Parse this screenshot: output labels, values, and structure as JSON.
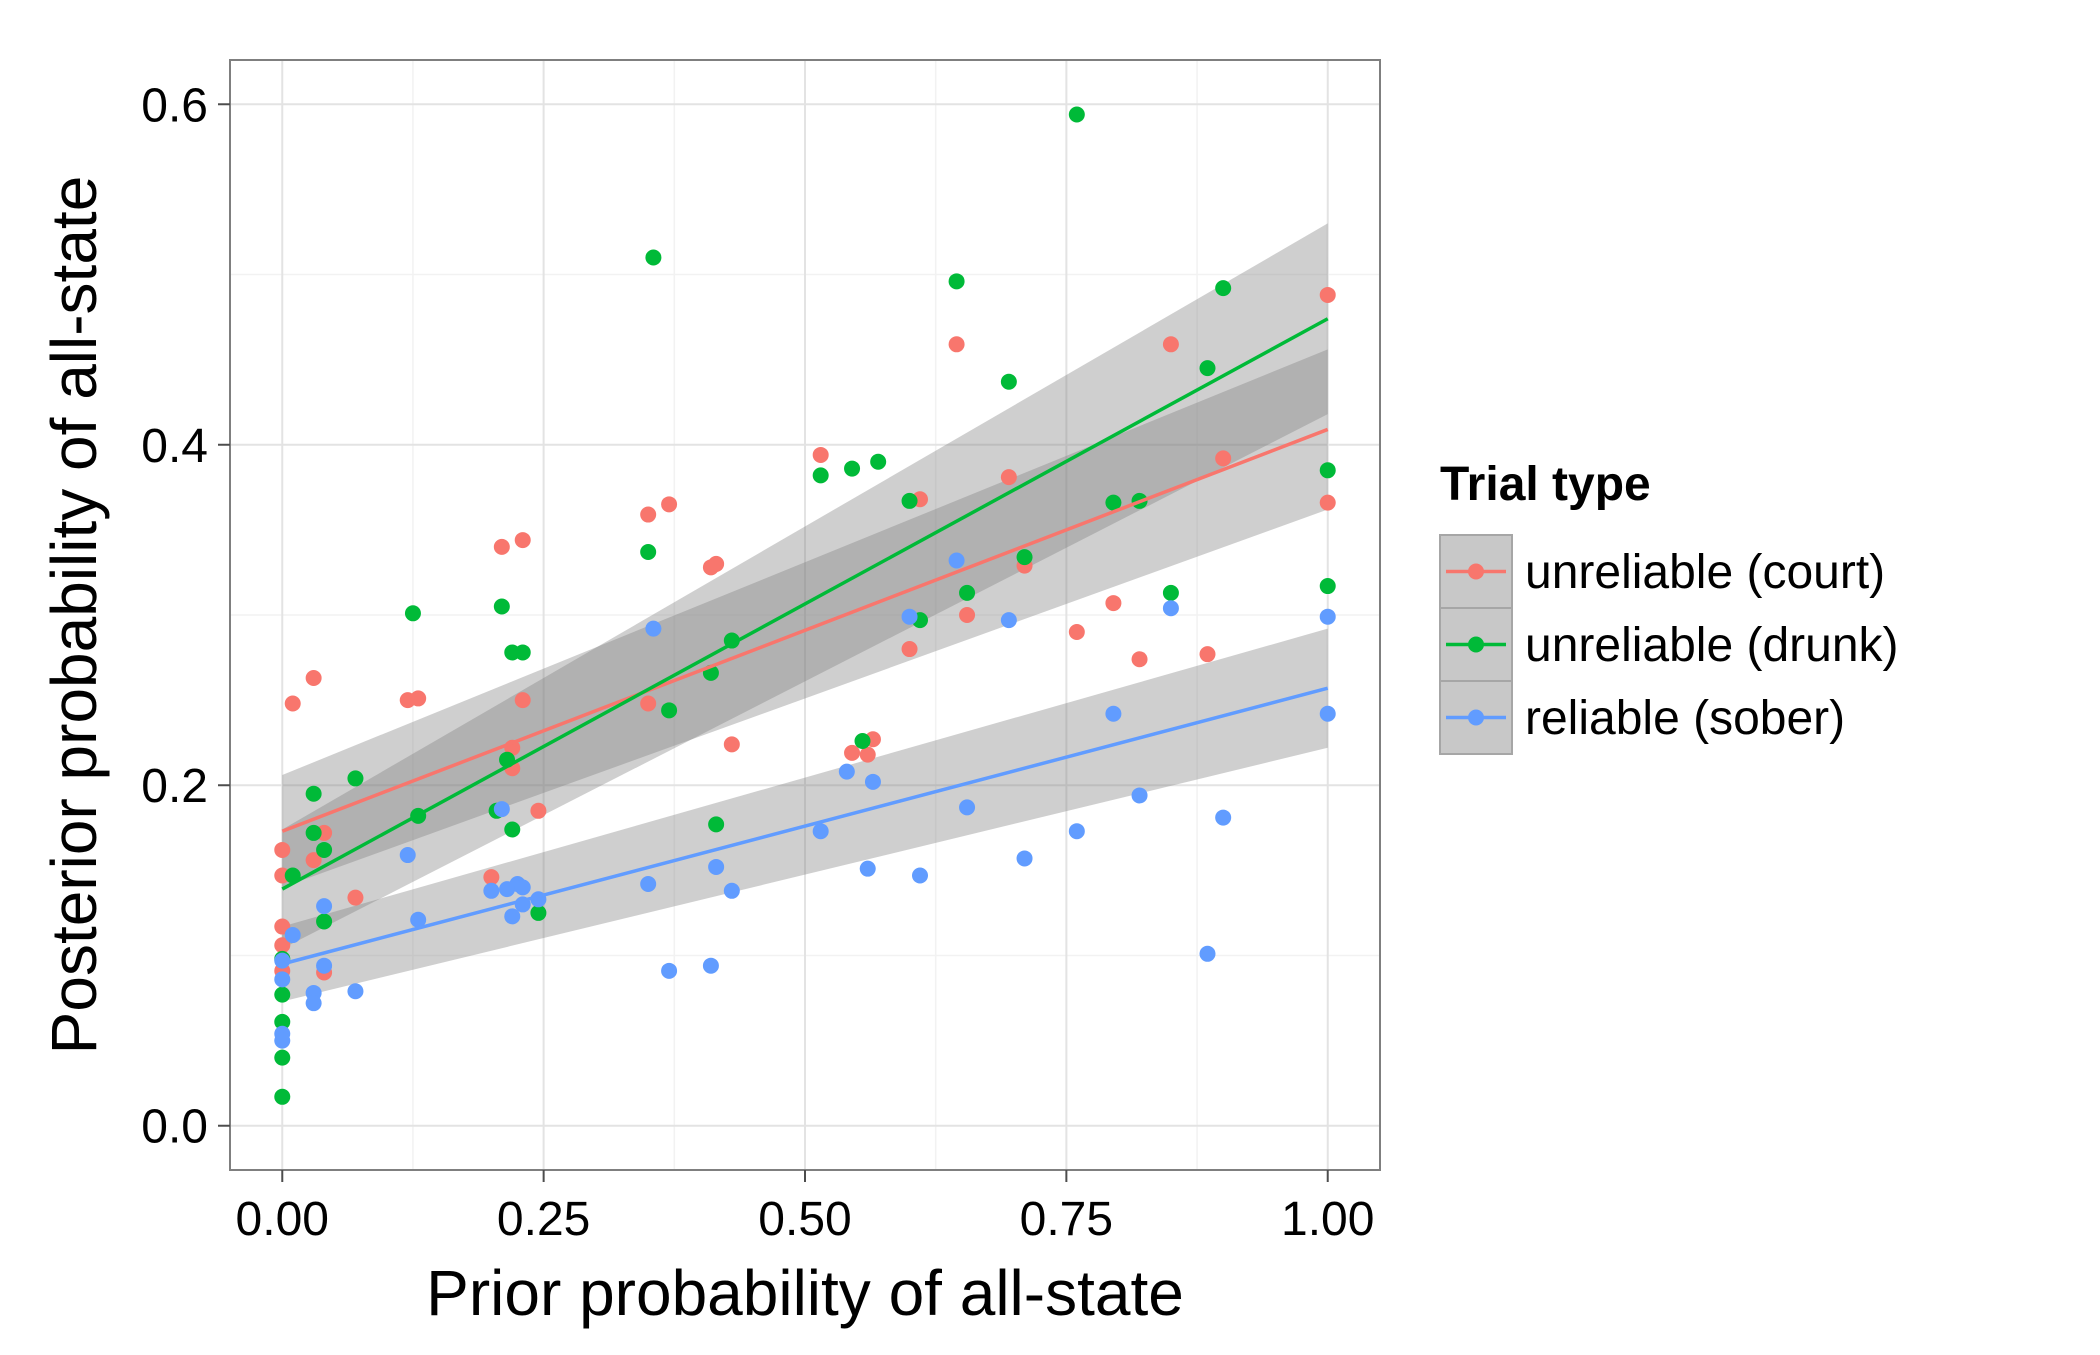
{
  "chart_data": {
    "type": "scatter",
    "xlabel": "Prior probability of all-state",
    "ylabel": "Posterior probability of all-state",
    "xlim": [
      -0.05,
      1.05
    ],
    "ylim": [
      -0.026,
      0.626
    ],
    "x_ticks": [
      0,
      0.25,
      0.5,
      0.75,
      1
    ],
    "x_tick_labels": [
      "0.00",
      "0.25",
      "0.50",
      "0.75",
      "1.00"
    ],
    "y_ticks": [
      0,
      0.2,
      0.4,
      0.6
    ],
    "y_tick_labels": [
      "0.0",
      "0.2",
      "0.4",
      "0.6"
    ],
    "grid": true,
    "legend": {
      "title": "Trial type",
      "position": "right"
    },
    "series": [
      {
        "name": "unreliable (court)",
        "color": "#F8766D",
        "points": [
          [
            0,
            0.162
          ],
          [
            0,
            0.147
          ],
          [
            0,
            0.117
          ],
          [
            0,
            0.106
          ],
          [
            0,
            0.091
          ],
          [
            0.01,
            0.248
          ],
          [
            0.03,
            0.263
          ],
          [
            0.03,
            0.156
          ],
          [
            0.04,
            0.172
          ],
          [
            0.04,
            0.09
          ],
          [
            0.07,
            0.134
          ],
          [
            0.12,
            0.25
          ],
          [
            0.13,
            0.251
          ],
          [
            0.2,
            0.146
          ],
          [
            0.21,
            0.34
          ],
          [
            0.22,
            0.222
          ],
          [
            0.22,
            0.21
          ],
          [
            0.23,
            0.344
          ],
          [
            0.23,
            0.25
          ],
          [
            0.245,
            0.185
          ],
          [
            0.35,
            0.359
          ],
          [
            0.35,
            0.248
          ],
          [
            0.37,
            0.365
          ],
          [
            0.41,
            0.328
          ],
          [
            0.415,
            0.33
          ],
          [
            0.43,
            0.224
          ],
          [
            0.515,
            0.394
          ],
          [
            0.545,
            0.219
          ],
          [
            0.56,
            0.218
          ],
          [
            0.565,
            0.227
          ],
          [
            0.6,
            0.28
          ],
          [
            0.61,
            0.368
          ],
          [
            0.645,
            0.459
          ],
          [
            0.655,
            0.3
          ],
          [
            0.695,
            0.381
          ],
          [
            0.71,
            0.329
          ],
          [
            0.76,
            0.29
          ],
          [
            0.795,
            0.307
          ],
          [
            0.82,
            0.274
          ],
          [
            0.85,
            0.459
          ],
          [
            0.885,
            0.277
          ],
          [
            0.9,
            0.392
          ],
          [
            1,
            0.488
          ],
          [
            1,
            0.366
          ]
        ],
        "fit": {
          "x": [
            0,
            1
          ],
          "y": [
            0.173,
            0.409
          ]
        },
        "ci_lower": [
          0.14,
          0.362
        ],
        "ci_upper": [
          0.206,
          0.456
        ]
      },
      {
        "name": "unreliable (drunk)",
        "color": "#00BA38",
        "points": [
          [
            0,
            0.098
          ],
          [
            0,
            0.077
          ],
          [
            0,
            0.061
          ],
          [
            0,
            0.04
          ],
          [
            0,
            0.017
          ],
          [
            0.01,
            0.147
          ],
          [
            0.03,
            0.195
          ],
          [
            0.03,
            0.172
          ],
          [
            0.04,
            0.162
          ],
          [
            0.04,
            0.12
          ],
          [
            0.07,
            0.204
          ],
          [
            0.125,
            0.301
          ],
          [
            0.13,
            0.182
          ],
          [
            0.205,
            0.185
          ],
          [
            0.21,
            0.305
          ],
          [
            0.215,
            0.215
          ],
          [
            0.22,
            0.174
          ],
          [
            0.22,
            0.278
          ],
          [
            0.23,
            0.278
          ],
          [
            0.245,
            0.125
          ],
          [
            0.35,
            0.337
          ],
          [
            0.355,
            0.51
          ],
          [
            0.37,
            0.244
          ],
          [
            0.41,
            0.266
          ],
          [
            0.415,
            0.177
          ],
          [
            0.43,
            0.285
          ],
          [
            0.515,
            0.382
          ],
          [
            0.545,
            0.386
          ],
          [
            0.555,
            0.226
          ],
          [
            0.57,
            0.39
          ],
          [
            0.6,
            0.367
          ],
          [
            0.61,
            0.297
          ],
          [
            0.645,
            0.496
          ],
          [
            0.655,
            0.313
          ],
          [
            0.695,
            0.437
          ],
          [
            0.71,
            0.334
          ],
          [
            0.76,
            0.594
          ],
          [
            0.795,
            0.366
          ],
          [
            0.82,
            0.367
          ],
          [
            0.85,
            0.313
          ],
          [
            0.885,
            0.445
          ],
          [
            0.9,
            0.492
          ],
          [
            1,
            0.385
          ],
          [
            1,
            0.317
          ]
        ],
        "fit": {
          "x": [
            0,
            1
          ],
          "y": [
            0.139,
            0.474
          ]
        },
        "ci_lower": [
          0.104,
          0.418
        ],
        "ci_upper": [
          0.174,
          0.53
        ]
      },
      {
        "name": "reliable (sober)",
        "color": "#619CFF",
        "points": [
          [
            0,
            0.097
          ],
          [
            0,
            0.086
          ],
          [
            0,
            0.054
          ],
          [
            0,
            0.05
          ],
          [
            0.01,
            0.112
          ],
          [
            0.03,
            0.078
          ],
          [
            0.03,
            0.072
          ],
          [
            0.04,
            0.129
          ],
          [
            0.04,
            0.094
          ],
          [
            0.07,
            0.079
          ],
          [
            0.12,
            0.159
          ],
          [
            0.13,
            0.121
          ],
          [
            0.2,
            0.138
          ],
          [
            0.21,
            0.186
          ],
          [
            0.215,
            0.139
          ],
          [
            0.22,
            0.123
          ],
          [
            0.225,
            0.142
          ],
          [
            0.23,
            0.14
          ],
          [
            0.23,
            0.13
          ],
          [
            0.245,
            0.133
          ],
          [
            0.35,
            0.142
          ],
          [
            0.355,
            0.292
          ],
          [
            0.37,
            0.091
          ],
          [
            0.41,
            0.094
          ],
          [
            0.415,
            0.152
          ],
          [
            0.43,
            0.138
          ],
          [
            0.515,
            0.173
          ],
          [
            0.54,
            0.208
          ],
          [
            0.56,
            0.151
          ],
          [
            0.565,
            0.202
          ],
          [
            0.6,
            0.299
          ],
          [
            0.61,
            0.147
          ],
          [
            0.645,
            0.332
          ],
          [
            0.655,
            0.187
          ],
          [
            0.695,
            0.297
          ],
          [
            0.71,
            0.157
          ],
          [
            0.76,
            0.173
          ],
          [
            0.795,
            0.242
          ],
          [
            0.82,
            0.194
          ],
          [
            0.85,
            0.304
          ],
          [
            0.885,
            0.101
          ],
          [
            0.9,
            0.181
          ],
          [
            1,
            0.299
          ],
          [
            1,
            0.242
          ]
        ],
        "fit": {
          "x": [
            0,
            1
          ],
          "y": [
            0.095,
            0.257
          ]
        },
        "ci_lower": [
          0.073,
          0.222
        ],
        "ci_upper": [
          0.117,
          0.292
        ]
      }
    ]
  }
}
